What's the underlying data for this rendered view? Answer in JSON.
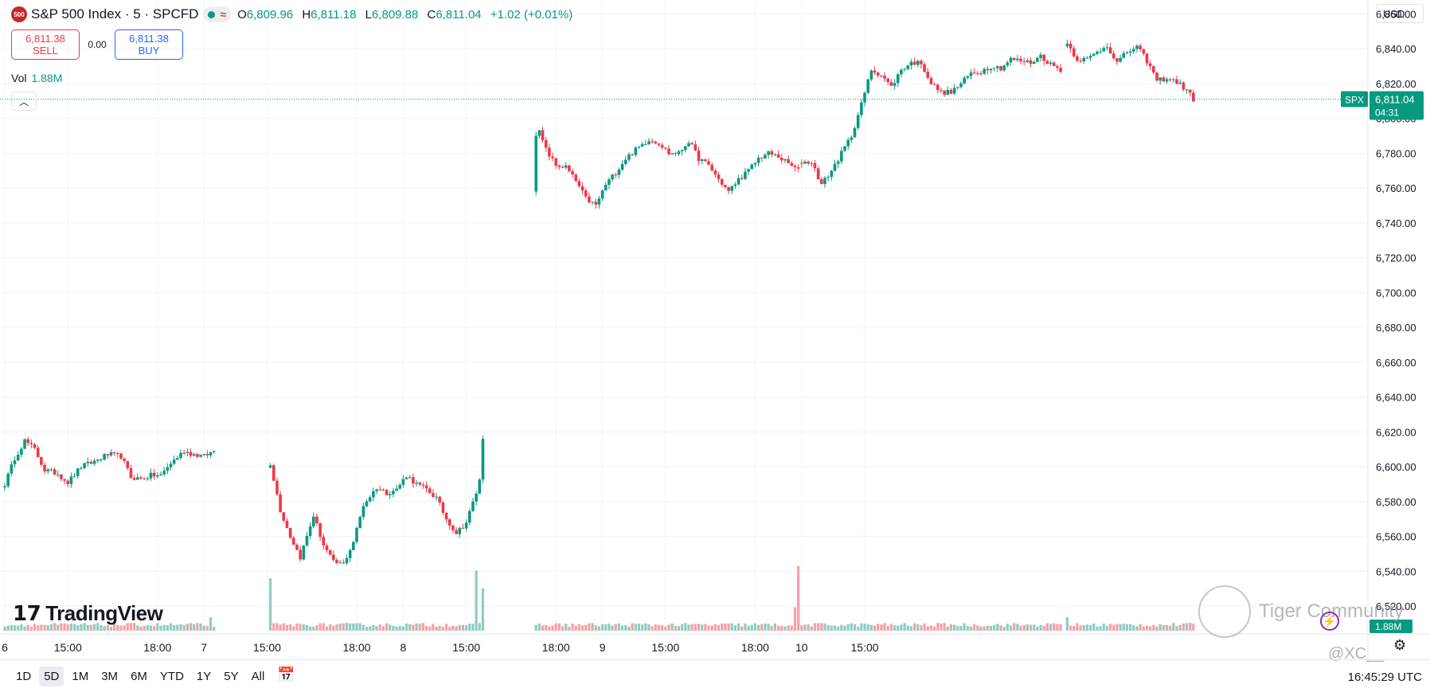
{
  "header": {
    "badge": "500",
    "symbol": "S&P 500 Index · 5 · SPCFD",
    "ohlc": {
      "o_label": "O",
      "o": "6,809.96",
      "h_label": "H",
      "h": "6,811.18",
      "l_label": "L",
      "l": "6,809.88",
      "c_label": "C",
      "c": "6,811.04",
      "change": "+1.02 (+0.01%)"
    }
  },
  "trade": {
    "sell_price": "6,811.38",
    "sell_label": "SELL",
    "spread": "0.00",
    "buy_price": "6,811.38",
    "buy_label": "BUY"
  },
  "volume": {
    "label": "Vol",
    "value": "1.88M"
  },
  "currency": "USD",
  "logo": "TradingView",
  "ranges": [
    "1D",
    "5D",
    "1M",
    "3M",
    "6M",
    "YTD",
    "1Y",
    "5Y",
    "All"
  ],
  "active_range": "5D",
  "clock": "16:45:29 UTC",
  "watermark": {
    "text": "Tiger Community",
    "handle": "@XC__"
  },
  "colors": {
    "up": "#089981",
    "down": "#f23645",
    "up_vol": "#8fcdc2",
    "down_vol": "#f7a1a6",
    "grid": "#f0f3fa",
    "text": "#131722"
  },
  "chart_data": {
    "type": "candlestick",
    "title": "S&P 500 Index · 5 · SPCFD",
    "ylim": [
      6504,
      6868
    ],
    "y_ticks": [
      6520,
      6540,
      6560,
      6580,
      6600,
      6620,
      6640,
      6660,
      6680,
      6700,
      6720,
      6740,
      6760,
      6780,
      6800,
      6820,
      6840,
      6860
    ],
    "y_tick_labels": [
      "6,520.00",
      "6,540.00",
      "6,560.00",
      "6,580.00",
      "6,600.00",
      "6,620.00",
      "6,640.00",
      "6,660.00",
      "6,680.00",
      "6,700.00",
      "6,720.00",
      "6,740.00",
      "6,760.00",
      "6,780.00",
      "6,800.00",
      "6,820.00",
      "6,840.00",
      "6,860.00"
    ],
    "x_labels": [
      "6",
      "15:00",
      "18:00",
      "7",
      "15:00",
      "18:00",
      "8",
      "15:00",
      "18:00",
      "9",
      "15:00",
      "18:00",
      "10",
      "15:00"
    ],
    "x_bar_index": [
      0,
      19,
      46,
      60,
      79,
      106,
      120,
      139,
      166,
      180,
      199,
      226,
      240,
      259
    ],
    "bars_per_day": 80,
    "days": 5,
    "last_bar_day4": 50,
    "sessions": [
      {
        "day": "6",
        "path": [
          [
            0,
            6590
          ],
          [
            3,
            6605
          ],
          [
            6,
            6615
          ],
          [
            9,
            6610
          ],
          [
            12,
            6598
          ],
          [
            16,
            6596
          ],
          [
            19,
            6591
          ],
          [
            23,
            6600
          ],
          [
            27,
            6603
          ],
          [
            31,
            6607
          ],
          [
            35,
            6606
          ],
          [
            38,
            6594
          ],
          [
            41,
            6593
          ],
          [
            44,
            6595
          ],
          [
            47,
            6595
          ],
          [
            50,
            6602
          ],
          [
            54,
            6609
          ],
          [
            57,
            6607
          ],
          [
            60,
            6606
          ],
          [
            63,
            6609
          ]
        ]
      },
      {
        "day": "7",
        "path": [
          [
            0,
            6602
          ],
          [
            3,
            6575
          ],
          [
            6,
            6560
          ],
          [
            9,
            6548
          ],
          [
            13,
            6572
          ],
          [
            16,
            6555
          ],
          [
            19,
            6545
          ],
          [
            22,
            6544
          ],
          [
            25,
            6557
          ],
          [
            28,
            6578
          ],
          [
            32,
            6588
          ],
          [
            35,
            6585
          ],
          [
            38,
            6587
          ],
          [
            41,
            6595
          ],
          [
            44,
            6590
          ],
          [
            47,
            6587
          ],
          [
            50,
            6582
          ],
          [
            53,
            6570
          ],
          [
            56,
            6562
          ],
          [
            59,
            6568
          ],
          [
            62,
            6585
          ],
          [
            63,
            6592
          ],
          [
            64,
            6617
          ]
        ]
      },
      {
        "day": "8",
        "path": [
          [
            0,
            6758
          ],
          [
            1,
            6792
          ],
          [
            3,
            6782
          ],
          [
            6,
            6773
          ],
          [
            9,
            6772
          ],
          [
            12,
            6764
          ],
          [
            15,
            6754
          ],
          [
            18,
            6750
          ],
          [
            21,
            6762
          ],
          [
            24,
            6769
          ],
          [
            27,
            6777
          ],
          [
            30,
            6782
          ],
          [
            34,
            6788
          ],
          [
            37,
            6786
          ],
          [
            40,
            6780
          ],
          [
            43,
            6780
          ],
          [
            46,
            6787
          ],
          [
            49,
            6777
          ],
          [
            52,
            6773
          ],
          [
            55,
            6765
          ],
          [
            58,
            6758
          ],
          [
            61,
            6765
          ],
          [
            64,
            6770
          ],
          [
            67,
            6777
          ],
          [
            70,
            6780
          ],
          [
            73,
            6778
          ],
          [
            76,
            6774
          ],
          [
            79,
            6770
          ]
        ]
      },
      {
        "day": "9",
        "path": [
          [
            0,
            6775
          ],
          [
            3,
            6775
          ],
          [
            6,
            6762
          ],
          [
            9,
            6770
          ],
          [
            12,
            6780
          ],
          [
            15,
            6790
          ],
          [
            18,
            6808
          ],
          [
            21,
            6828
          ],
          [
            24,
            6825
          ],
          [
            27,
            6818
          ],
          [
            30,
            6828
          ],
          [
            33,
            6832
          ],
          [
            36,
            6832
          ],
          [
            39,
            6820
          ],
          [
            42,
            6815
          ],
          [
            45,
            6815
          ],
          [
            48,
            6820
          ],
          [
            51,
            6826
          ],
          [
            54,
            6827
          ],
          [
            57,
            6830
          ],
          [
            60,
            6829
          ],
          [
            63,
            6834
          ],
          [
            66,
            6833
          ],
          [
            69,
            6832
          ],
          [
            72,
            6836
          ],
          [
            75,
            6831
          ],
          [
            78,
            6828
          ]
        ]
      },
      {
        "day": "10",
        "path": [
          [
            0,
            6843
          ],
          [
            3,
            6834
          ],
          [
            6,
            6834
          ],
          [
            9,
            6838
          ],
          [
            12,
            6842
          ],
          [
            15,
            6832
          ],
          [
            18,
            6838
          ],
          [
            21,
            6841
          ],
          [
            24,
            6833
          ],
          [
            27,
            6822
          ],
          [
            30,
            6823
          ],
          [
            33,
            6821
          ],
          [
            36,
            6816
          ],
          [
            38,
            6811
          ]
        ]
      }
    ],
    "volume_spikes": [
      {
        "day": "6",
        "bar": 62,
        "value": 1.2
      },
      {
        "day": "7",
        "bar": 0,
        "value": 4.7
      },
      {
        "day": "7",
        "bar": 62,
        "value": 5.4
      },
      {
        "day": "7",
        "bar": 64,
        "value": 3.8
      },
      {
        "day": "8",
        "bar": 79,
        "value": 5.8
      },
      {
        "day": "8",
        "bar": 78,
        "value": 2.1
      },
      {
        "day": "9",
        "bar": 79,
        "value": 5.5
      },
      {
        "day": "9",
        "bar": 80,
        "value": 1.2
      }
    ],
    "last_price": 6811.04,
    "last_price_label": "6,811.04",
    "last_symbol": "SPX",
    "countdown": "04:31",
    "last_volume_label": "1.88M"
  }
}
